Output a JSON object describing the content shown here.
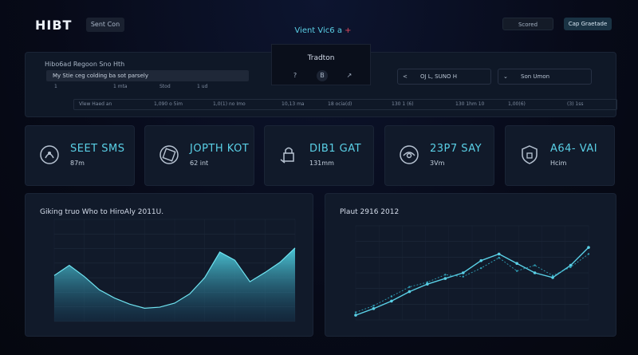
{
  "header": {
    "logo": "HIBT",
    "search_label": "Sent Con",
    "app_title": "Vient Vic6 a",
    "app_title_accent": "+",
    "btn_scored": "Scored",
    "btn_grade": "Cap Graetade"
  },
  "popup": {
    "title": "Tradton",
    "icons": [
      "?",
      "B",
      "↗"
    ]
  },
  "filter": {
    "heading": "Hibo6ad Regoon Sno Hth",
    "input_value": "My Stie ceg colding ba sot parsely",
    "nav_left": {
      "chevron": "<",
      "label": "OJ L, SUNO H"
    },
    "nav_right": {
      "chevron": "⌄",
      "label": "Son Umon"
    },
    "sub_labels": [
      "1",
      "1 mta",
      "Stod",
      "1 ud"
    ],
    "row_labels": [
      "Vlew Haed an",
      "1,090 o 5im",
      "1,0(1) no Imo",
      "10,13 ma",
      "18 ocia(d)",
      "130 1 (6)",
      "130 1hm 10",
      "1,00(6)",
      "(3) 1ss"
    ]
  },
  "kpis": [
    {
      "icon": "shield-face-icon",
      "value": "SEET SMS",
      "sub": "87m"
    },
    {
      "icon": "circle-target-icon",
      "value": "JOPTH KOT",
      "sub": "62 int"
    },
    {
      "icon": "lock-hand-icon",
      "value": "DIB1 GAT",
      "sub": "131mm"
    },
    {
      "icon": "circle-eye-icon",
      "value": "23P7 SAY",
      "sub": "3Vm"
    },
    {
      "icon": "shield-alert-icon",
      "value": "A64- VAI",
      "sub": "Hcim"
    }
  ],
  "colors": {
    "accent": "#5ad0e6",
    "panel": "#111a2a",
    "bg": "#070a18"
  },
  "chart_data": [
    {
      "type": "area",
      "title": "Giking truo Who to HiroAly 2011U.",
      "x": [
        0,
        1,
        2,
        3,
        4,
        5,
        6,
        7,
        8,
        9,
        10,
        11,
        12,
        13,
        14,
        15,
        16
      ],
      "series": [
        {
          "values": [
            45,
            55,
            44,
            31,
            23,
            17,
            13,
            14,
            18,
            27,
            43,
            68,
            60,
            39,
            48,
            58,
            72
          ]
        }
      ],
      "ylim": [
        0,
        100
      ],
      "grid": true
    },
    {
      "type": "line",
      "title": "Plaut 2916 2012",
      "x": [
        0,
        1,
        2,
        3,
        4,
        5,
        6,
        7,
        8,
        9,
        10,
        11,
        12,
        13
      ],
      "series": [
        {
          "values": [
            5,
            12,
            20,
            30,
            38,
            44,
            50,
            63,
            70,
            60,
            50,
            45,
            58,
            77
          ]
        },
        {
          "values": [
            8,
            15,
            25,
            35,
            40,
            48,
            46,
            55,
            66,
            52,
            58,
            47,
            56,
            70
          ]
        }
      ],
      "ylim": [
        0,
        100
      ],
      "grid": true
    }
  ]
}
